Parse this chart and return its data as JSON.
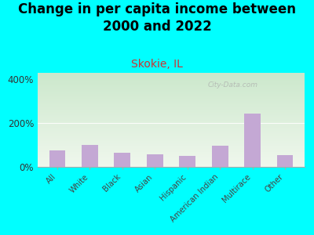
{
  "title": "Change in per capita income between\n2000 and 2022",
  "subtitle": "Skokie, IL",
  "categories": [
    "All",
    "White",
    "Black",
    "Asian",
    "Hispanic",
    "American Indian",
    "Multirace",
    "Other"
  ],
  "values": [
    75,
    100,
    65,
    58,
    50,
    95,
    245,
    55
  ],
  "bar_color": "#c4a8d4",
  "background_outer": "#00FFFF",
  "background_plot_top": "#cce8cc",
  "background_plot_bottom": "#f0f5ee",
  "title_fontsize": 12,
  "title_fontweight": "bold",
  "subtitle_color": "#cc3333",
  "subtitle_fontsize": 10,
  "ylabel_ticks": [
    "0%",
    "200%",
    "400%"
  ],
  "ytick_vals": [
    0,
    200,
    400
  ],
  "ylim": [
    0,
    430
  ],
  "watermark": "City-Data.com"
}
